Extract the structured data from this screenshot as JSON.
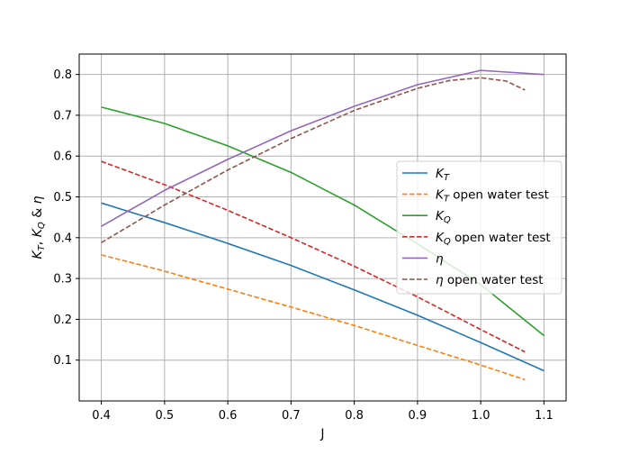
{
  "chart_data": {
    "type": "line",
    "title": "",
    "xlabel": "J",
    "ylabel": {
      "symbols": [
        "K",
        "T",
        ", ",
        "K",
        "Q",
        " & ",
        "η"
      ]
    },
    "xlim": [
      0.365,
      1.135
    ],
    "ylim": [
      0.0,
      0.85
    ],
    "grid": true,
    "legend_position": "right",
    "x_ticks": [
      "0.4",
      "0.5",
      "0.6",
      "0.7",
      "0.8",
      "0.9",
      "1.0",
      "1.1"
    ],
    "y_ticks": [
      "0.1",
      "0.2",
      "0.3",
      "0.4",
      "0.5",
      "0.6",
      "0.7",
      "0.8"
    ],
    "series": [
      {
        "name": "K_T",
        "legend": {
          "symbol": "K",
          "sub": "T",
          "suffix": ""
        },
        "color": "#1f77b4",
        "dash": "solid",
        "x": [
          0.4,
          0.5,
          0.6,
          0.7,
          0.8,
          0.9,
          1.0,
          1.1
        ],
        "y": [
          0.485,
          0.437,
          0.386,
          0.332,
          0.272,
          0.21,
          0.143,
          0.074
        ]
      },
      {
        "name": "K_T open water test",
        "legend": {
          "symbol": "K",
          "sub": "T",
          "suffix": " open water test"
        },
        "color": "#ff7f0e",
        "dash": "dashed",
        "x": [
          0.4,
          0.5,
          0.6,
          0.7,
          0.8,
          0.9,
          1.0,
          1.07
        ],
        "y": [
          0.358,
          0.318,
          0.274,
          0.23,
          0.185,
          0.136,
          0.088,
          0.052
        ]
      },
      {
        "name": "K_Q",
        "legend": {
          "symbol": "K",
          "sub": "Q",
          "suffix": ""
        },
        "color": "#2ca02c",
        "dash": "solid",
        "x": [
          0.4,
          0.5,
          0.6,
          0.7,
          0.8,
          0.9,
          1.0,
          1.1
        ],
        "y": [
          0.72,
          0.68,
          0.625,
          0.56,
          0.48,
          0.385,
          0.285,
          0.16
        ]
      },
      {
        "name": "K_Q open water test",
        "legend": {
          "symbol": "K",
          "sub": "Q",
          "suffix": " open water test"
        },
        "color": "#d62728",
        "dash": "dashed",
        "x": [
          0.4,
          0.5,
          0.6,
          0.7,
          0.8,
          0.9,
          1.0,
          1.07
        ],
        "y": [
          0.587,
          0.53,
          0.467,
          0.4,
          0.33,
          0.255,
          0.175,
          0.12
        ]
      },
      {
        "name": "η",
        "legend": {
          "symbol": "η",
          "sub": "",
          "suffix": ""
        },
        "color": "#9467bd",
        "dash": "solid",
        "x": [
          0.4,
          0.5,
          0.6,
          0.7,
          0.8,
          0.9,
          1.0,
          1.1
        ],
        "y": [
          0.428,
          0.516,
          0.592,
          0.662,
          0.722,
          0.775,
          0.81,
          0.8
        ]
      },
      {
        "name": "η open water test",
        "legend": {
          "symbol": "η",
          "sub": "",
          "suffix": " open water test"
        },
        "color": "#8c564b",
        "dash": "dashed",
        "x": [
          0.4,
          0.5,
          0.6,
          0.7,
          0.8,
          0.9,
          0.95,
          1.0,
          1.04,
          1.07
        ],
        "y": [
          0.388,
          0.48,
          0.566,
          0.643,
          0.712,
          0.766,
          0.785,
          0.792,
          0.784,
          0.762
        ]
      }
    ]
  }
}
